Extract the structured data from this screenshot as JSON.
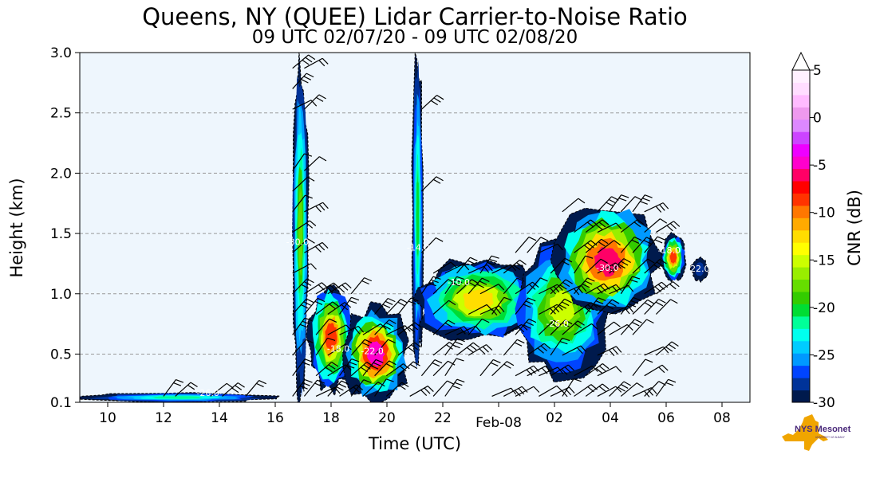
{
  "chart_data": {
    "type": "heatmap",
    "title": "Queens, NY (QUEE) Lidar Carrier-to-Noise Ratio",
    "subtitle": "09 UTC 02/07/20 - 09 UTC 02/08/20",
    "xlabel": "Time (UTC)",
    "ylabel": "Height (km)",
    "x_ticks": [
      {
        "label": "10",
        "hour": 1
      },
      {
        "label": "12",
        "hour": 3
      },
      {
        "label": "14",
        "hour": 5
      },
      {
        "label": "16",
        "hour": 7
      },
      {
        "label": "18",
        "hour": 9
      },
      {
        "label": "20",
        "hour": 11
      },
      {
        "label": "22",
        "hour": 13
      },
      {
        "label": "02",
        "hour": 17
      },
      {
        "label": "04",
        "hour": 19
      },
      {
        "label": "06",
        "hour": 21
      },
      {
        "label": "08",
        "hour": 23
      }
    ],
    "date_tick": {
      "label": "Feb-08",
      "hour": 15
    },
    "xlim_hours": [
      0,
      24
    ],
    "ylim": [
      0.1,
      3.0
    ],
    "y_ticks": [
      0.1,
      0.5,
      1.0,
      1.5,
      2.0,
      2.5,
      3.0
    ],
    "y_tick_labels": [
      "0.1",
      "0.5",
      "1.0",
      "1.5",
      "2.0",
      "2.5",
      "3.0"
    ],
    "grid": "horizontal dashed",
    "background_color": "#eef6fd",
    "colorbar": {
      "label": "CNR (dB)",
      "ticks": [
        "5",
        "0",
        "-5",
        "-10",
        "-15",
        "-20",
        "-25",
        "-30"
      ],
      "tick_values": [
        5,
        0,
        -5,
        -10,
        -15,
        -20,
        -25,
        -30
      ],
      "range": [
        -30,
        5
      ],
      "colors": [
        "#001a4d",
        "#003399",
        "#0044ff",
        "#0099ff",
        "#00ccff",
        "#00ffee",
        "#00ff99",
        "#00dd33",
        "#33cc00",
        "#66dd00",
        "#99ee00",
        "#ccff00",
        "#ffff00",
        "#ffdd00",
        "#ffaa00",
        "#ff7700",
        "#ff3300",
        "#ff0000",
        "#ff0066",
        "#ff00cc",
        "#ee00ff",
        "#cc44ff",
        "#dd88ff",
        "#ee99ee",
        "#ffbbff",
        "#ffddff",
        "#fff0ff"
      ]
    },
    "contour_labels": [
      "-26.0",
      "-30.0",
      "-18.0",
      "-22.0",
      "-14.0",
      "-10.0"
    ],
    "cnr_regions": [
      {
        "t0": 0.0,
        "t1": 7.0,
        "h0": 0.1,
        "h1": 0.18,
        "peak": -22
      },
      {
        "t0": 7.6,
        "t1": 8.2,
        "h0": 0.1,
        "h1": 2.95,
        "peak": -18
      },
      {
        "t0": 8.2,
        "t1": 9.8,
        "h0": 0.2,
        "h1": 1.1,
        "peak": -8
      },
      {
        "t0": 9.4,
        "t1": 11.8,
        "h0": 0.1,
        "h1": 0.9,
        "peak": -5
      },
      {
        "t0": 11.9,
        "t1": 12.3,
        "h0": 0.3,
        "h1": 3.0,
        "peak": -20
      },
      {
        "t0": 12.0,
        "t1": 16.5,
        "h0": 0.6,
        "h1": 1.3,
        "peak": -12
      },
      {
        "t0": 15.5,
        "t1": 19.0,
        "h0": 0.3,
        "h1": 1.45,
        "peak": -15
      },
      {
        "t0": 17.0,
        "t1": 20.8,
        "h0": 0.8,
        "h1": 1.75,
        "peak": -6
      },
      {
        "t0": 20.8,
        "t1": 21.7,
        "h0": 1.1,
        "h1": 1.5,
        "peak": -8
      },
      {
        "t0": 21.9,
        "t1": 22.5,
        "h0": 1.1,
        "h1": 1.3,
        "peak": -28
      }
    ]
  },
  "logo": {
    "text": "NYS Mesonet",
    "subtext": "UNIVERSITY AT ALBANY"
  }
}
